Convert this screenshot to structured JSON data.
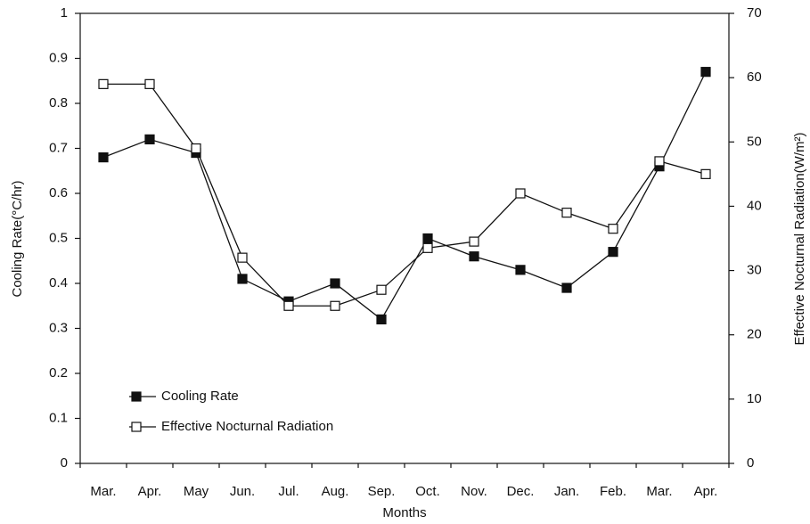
{
  "chart_data": {
    "type": "line",
    "xlabel": "Months",
    "ylabel": "Cooling Rate(°C/hr)",
    "y2label": "Effective Nocturnal Radiation(W/m²)",
    "categories": [
      "Mar.",
      "Apr.",
      "May",
      "Jun.",
      "Jul.",
      "Aug.",
      "Sep.",
      "Oct.",
      "Nov.",
      "Dec.",
      "Jan.",
      "Feb.",
      "Mar.",
      "Apr."
    ],
    "series": [
      {
        "name": "Cooling Rate",
        "color": "#111111",
        "marker": "filled-square",
        "values": [
          0.68,
          0.72,
          0.69,
          0.41,
          0.36,
          0.4,
          0.32,
          0.5,
          0.46,
          0.43,
          0.39,
          0.47,
          0.66,
          0.87
        ]
      },
      {
        "name": "Effective Nocturnal Radiation",
        "color": "#111111",
        "marker": "open-square",
        "axis": "y2",
        "values": [
          59,
          59,
          49,
          32,
          24.5,
          24.5,
          27,
          33.5,
          34.5,
          42,
          39,
          36.5,
          47,
          45
        ]
      }
    ],
    "ylim": [
      0,
      1
    ],
    "yticks": [
      0,
      0.1,
      0.2,
      0.3,
      0.4,
      0.5,
      0.6,
      0.7,
      0.8,
      0.9,
      1
    ],
    "y2lim": [
      0,
      70
    ],
    "y2ticks": [
      0,
      10,
      20,
      30,
      40,
      50,
      60,
      70
    ],
    "grid": false,
    "legend": "lower left"
  }
}
